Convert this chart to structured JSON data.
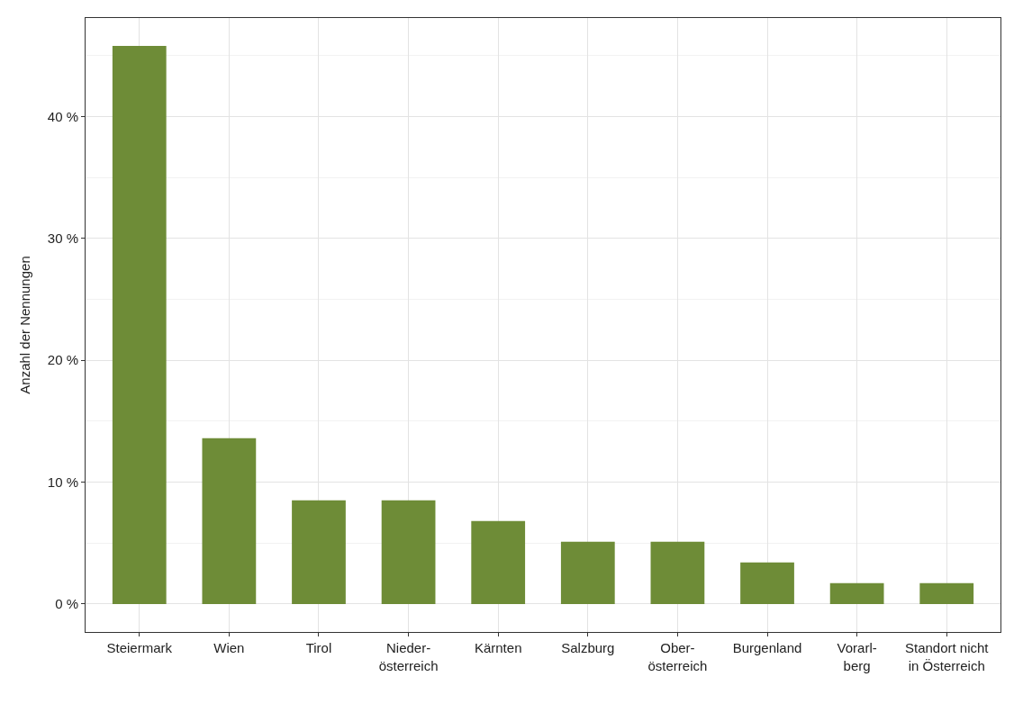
{
  "chart_data": {
    "type": "bar",
    "ylabel": "Anzahl der Nennungen",
    "categories": [
      "Steiermark",
      "Wien",
      "Tirol",
      "Nieder-\nösterreich",
      "Kärnten",
      "Salzburg",
      "Ober-\nösterreich",
      "Burgenland",
      "Vorarl-\nberg",
      "Standort nicht\nin Österreich"
    ],
    "values": [
      45.8,
      13.6,
      8.5,
      8.5,
      6.8,
      5.1,
      5.1,
      3.4,
      1.7,
      1.7
    ],
    "color": "#6e8c37",
    "ylim": [
      -2.3,
      48.1
    ],
    "yticks": [
      {
        "value": 0,
        "label": "0 %"
      },
      {
        "value": 10,
        "label": "10 %"
      },
      {
        "value": 20,
        "label": "20 %"
      },
      {
        "value": 30,
        "label": "30 %"
      },
      {
        "value": 40,
        "label": "40 %"
      }
    ],
    "grid": true
  }
}
